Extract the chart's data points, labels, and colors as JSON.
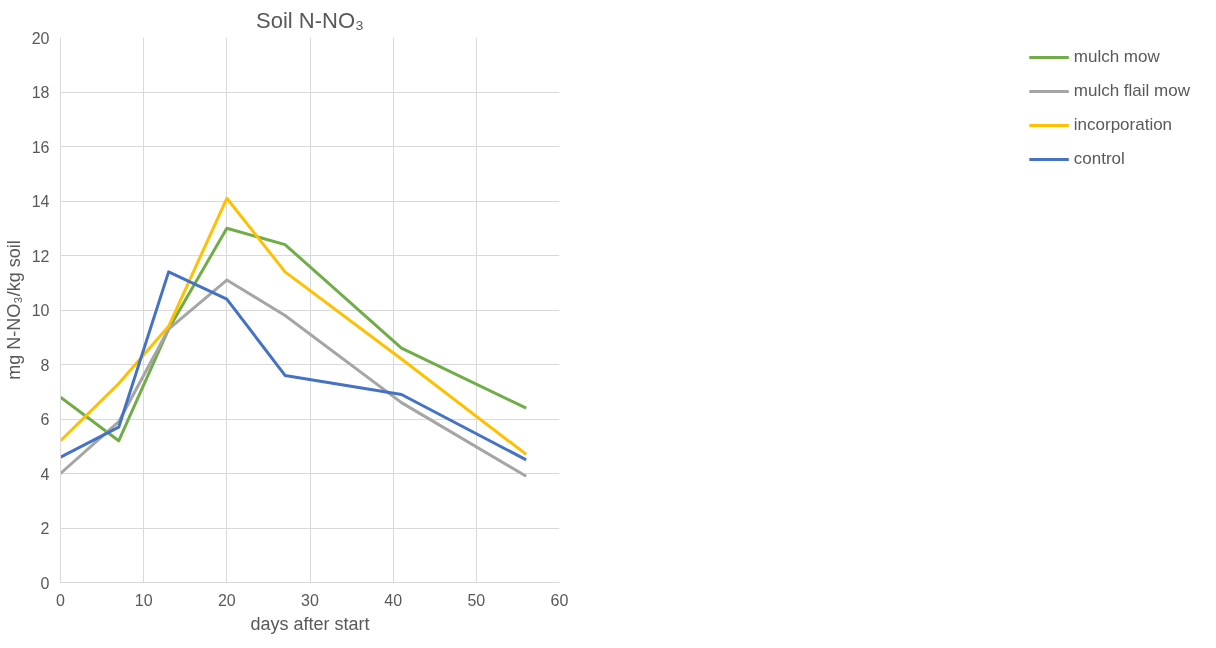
{
  "chart_data": {
    "type": "line",
    "title": "Soil N-NO₃",
    "xlabel": "days after start",
    "ylabel": "mg N-NO₃/kg soil",
    "x": [
      0,
      7,
      13,
      20,
      27,
      41,
      56
    ],
    "series": [
      {
        "name": "mulch mow",
        "color": "#70ad47",
        "values": [
          6.8,
          5.2,
          9.3,
          13.0,
          12.4,
          8.6,
          6.4
        ]
      },
      {
        "name": "mulch flail mow",
        "color": "#a5a5a5",
        "values": [
          4.0,
          5.9,
          9.3,
          11.1,
          9.8,
          6.6,
          3.9
        ]
      },
      {
        "name": "incorporation",
        "color": "#ffc000",
        "values": [
          5.2,
          7.3,
          9.4,
          14.1,
          11.4,
          8.2,
          4.7
        ]
      },
      {
        "name": "control",
        "color": "#4472c4",
        "values": [
          4.6,
          5.7,
          11.4,
          10.4,
          7.6,
          6.9,
          4.5
        ]
      }
    ],
    "xlim": [
      0,
      60
    ],
    "xticks": [
      0,
      10,
      20,
      30,
      40,
      50,
      60
    ],
    "ylim": [
      0,
      20
    ],
    "yticks": [
      0,
      2,
      4,
      6,
      8,
      10,
      12,
      14,
      16,
      18,
      20
    ],
    "grid": true,
    "legend": "right",
    "marker": "none",
    "line_style": "solid"
  }
}
